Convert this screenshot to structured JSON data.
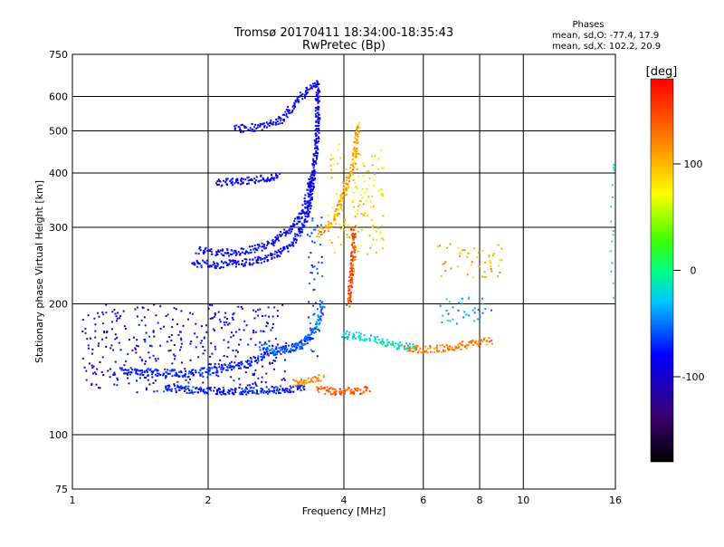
{
  "chart_data": {
    "type": "scatter",
    "title": "Tromsø 20170411 18:34:00-18:35:43",
    "subtitle": "RwPretec (Bp)",
    "xlabel": "Frequency [MHz]",
    "ylabel": "Stationary phase Virtual Height [km]",
    "x_scale": "log",
    "y_scale": "log",
    "xlim": [
      1,
      16
    ],
    "ylim": [
      75,
      750
    ],
    "x_ticks": [
      1,
      2,
      4,
      6,
      8,
      10,
      16
    ],
    "x_tick_labels": [
      "1",
      "2",
      "4",
      "6",
      "8",
      "10",
      "16"
    ],
    "y_ticks": [
      75,
      100,
      200,
      300,
      400,
      500,
      600,
      750
    ],
    "y_tick_labels": [
      "75",
      "100",
      "200",
      "300",
      "400",
      "500",
      "600",
      "750"
    ],
    "grid": true,
    "phase_stats": {
      "heading": "Phases",
      "line_o": "mean, sd,O: -77.4, 17.9",
      "line_x": "mean, sd,X: 102.2, 20.9"
    },
    "colorbar": {
      "label": "[deg]",
      "range": [
        -180,
        180
      ],
      "ticks": [
        100,
        0,
        -100
      ],
      "tick_labels": [
        "100",
        "0",
        "-100"
      ],
      "colormap": "rainbow"
    },
    "traces": [
      {
        "kind": "curve",
        "phase": -95,
        "points": [
          [
            1.85,
            248
          ],
          [
            2.1,
            246
          ],
          [
            2.5,
            250
          ],
          [
            2.8,
            258
          ],
          [
            3.0,
            268
          ],
          [
            3.2,
            290
          ],
          [
            3.35,
            330
          ],
          [
            3.45,
            420
          ],
          [
            3.5,
            520
          ],
          [
            3.5,
            650
          ]
        ]
      },
      {
        "kind": "curve",
        "phase": -95,
        "points": [
          [
            1.9,
            265
          ],
          [
            2.3,
            262
          ],
          [
            2.7,
            272
          ],
          [
            3.1,
            300
          ],
          [
            3.3,
            340
          ],
          [
            3.4,
            400
          ]
        ]
      },
      {
        "kind": "curve",
        "phase": -95,
        "points": [
          [
            2.3,
            505
          ],
          [
            2.6,
            510
          ],
          [
            2.9,
            530
          ],
          [
            3.1,
            570
          ],
          [
            3.3,
            620
          ],
          [
            3.5,
            640
          ]
        ]
      },
      {
        "kind": "curve",
        "phase": -100,
        "points": [
          [
            2.1,
            380
          ],
          [
            2.5,
            385
          ],
          [
            2.9,
            395
          ]
        ]
      },
      {
        "kind": "band",
        "phase": -100,
        "xrange": [
          1.05,
          3.0
        ],
        "hrange": [
          125,
          200
        ]
      },
      {
        "kind": "curve",
        "phase": -80,
        "points": [
          [
            1.6,
            128
          ],
          [
            2.0,
            126
          ],
          [
            2.5,
            126
          ],
          [
            3.0,
            127
          ],
          [
            3.3,
            128
          ]
        ]
      },
      {
        "kind": "curve",
        "phase": -80,
        "points": [
          [
            1.3,
            140
          ],
          [
            1.8,
            138
          ],
          [
            2.4,
            145
          ],
          [
            2.8,
            155
          ],
          [
            3.2,
            160
          ],
          [
            3.4,
            170
          ]
        ]
      },
      {
        "kind": "curve",
        "phase": -60,
        "points": [
          [
            2.6,
            160
          ],
          [
            3.0,
            155
          ],
          [
            3.3,
            165
          ],
          [
            3.5,
            180
          ],
          [
            3.6,
            200
          ]
        ]
      },
      {
        "kind": "band",
        "phase": -65,
        "xrange": [
          3.3,
          3.6
        ],
        "hrange": [
          150,
          320
        ]
      },
      {
        "kind": "curve",
        "phase": 110,
        "points": [
          [
            3.5,
            290
          ],
          [
            3.7,
            300
          ],
          [
            3.85,
            320
          ],
          [
            4.0,
            360
          ],
          [
            4.2,
            420
          ],
          [
            4.3,
            520
          ]
        ]
      },
      {
        "kind": "band",
        "phase": 95,
        "xrange": [
          3.7,
          4.9
        ],
        "hrange": [
          260,
          470
        ]
      },
      {
        "kind": "curve",
        "phase": 150,
        "points": [
          [
            4.1,
            200
          ],
          [
            4.15,
            230
          ],
          [
            4.2,
            260
          ],
          [
            4.2,
            300
          ]
        ]
      },
      {
        "kind": "curve",
        "phase": 140,
        "points": [
          [
            3.5,
            127
          ],
          [
            3.8,
            126
          ],
          [
            4.2,
            126
          ],
          [
            4.6,
            127
          ]
        ]
      },
      {
        "kind": "curve",
        "phase": 120,
        "points": [
          [
            3.1,
            132
          ],
          [
            3.3,
            133
          ],
          [
            3.6,
            135
          ]
        ]
      },
      {
        "kind": "curve",
        "phase": -20,
        "points": [
          [
            4.0,
            170
          ],
          [
            4.4,
            168
          ],
          [
            4.8,
            165
          ],
          [
            5.3,
            160
          ],
          [
            5.8,
            160
          ]
        ]
      },
      {
        "kind": "curve",
        "phase": 125,
        "points": [
          [
            5.5,
            158
          ],
          [
            6.0,
            157
          ],
          [
            6.6,
            158
          ],
          [
            7.2,
            160
          ],
          [
            7.8,
            162
          ],
          [
            8.5,
            165
          ]
        ]
      },
      {
        "kind": "band",
        "phase": 110,
        "xrange": [
          6.4,
          9.0
        ],
        "hrange": [
          230,
          275
        ]
      },
      {
        "kind": "band",
        "phase": -40,
        "xrange": [
          6.5,
          8.5
        ],
        "hrange": [
          180,
          210
        ]
      },
      {
        "kind": "band",
        "phase": -10,
        "xrange": [
          15.6,
          15.9
        ],
        "hrange": [
          200,
          520
        ]
      }
    ]
  }
}
